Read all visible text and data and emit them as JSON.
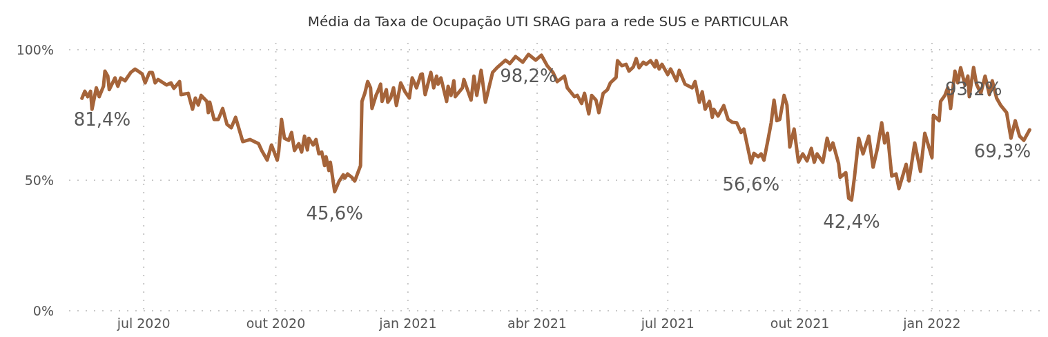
{
  "chart_data": {
    "type": "line",
    "title": "Média da Taxa de Ocupação UTI SRAG para a rede SUS e PARTICULAR",
    "x": [
      "2020-05-19",
      "2020-05-21",
      "2020-05-23",
      "2020-05-25",
      "2020-05-26",
      "2020-05-29",
      "2020-05-31",
      "2020-06-03",
      "2020-06-04",
      "2020-06-06",
      "2020-06-07",
      "2020-06-11",
      "2020-06-13",
      "2020-06-15",
      "2020-06-18",
      "2020-06-22",
      "2020-06-25",
      "2020-06-30",
      "2020-07-02",
      "2020-07-05",
      "2020-07-07",
      "2020-07-09",
      "2020-07-11",
      "2020-07-17",
      "2020-07-20",
      "2020-07-22",
      "2020-07-26",
      "2020-07-27",
      "2020-08-01",
      "2020-08-04",
      "2020-08-06",
      "2020-08-08",
      "2020-08-10",
      "2020-08-14",
      "2020-08-15",
      "2020-08-16",
      "2020-08-19",
      "2020-08-22",
      "2020-08-25",
      "2020-08-28",
      "2020-08-31",
      "2020-09-03",
      "2020-09-08",
      "2020-09-13",
      "2020-09-19",
      "2020-09-21",
      "2020-09-25",
      "2020-09-28",
      "2020-10-02",
      "2020-10-03",
      "2020-10-05",
      "2020-10-07",
      "2020-10-10",
      "2020-10-12",
      "2020-10-14",
      "2020-10-17",
      "2020-10-19",
      "2020-10-21",
      "2020-10-23",
      "2020-10-24",
      "2020-10-27",
      "2020-10-29",
      "2020-10-31",
      "2020-11-02",
      "2020-11-04",
      "2020-11-05",
      "2020-11-07",
      "2020-11-08",
      "2020-11-11",
      "2020-11-14",
      "2020-11-17",
      "2020-11-18",
      "2020-11-20",
      "2020-11-23",
      "2020-11-25",
      "2020-11-29",
      "2020-11-30",
      "2020-12-02",
      "2020-12-04",
      "2020-12-06",
      "2020-12-07",
      "2020-12-10",
      "2020-12-11",
      "2020-12-13",
      "2020-12-14",
      "2020-12-17",
      "2020-12-18",
      "2020-12-20",
      "2020-12-22",
      "2020-12-24",
      "2020-12-27",
      "2020-12-30",
      "2021-01-02",
      "2021-01-04",
      "2021-01-07",
      "2021-01-10",
      "2021-01-11",
      "2021-01-13",
      "2021-01-17",
      "2021-01-19",
      "2021-01-21",
      "2021-01-22",
      "2021-01-24",
      "2021-01-28",
      "2021-01-29",
      "2021-01-31",
      "2021-02-02",
      "2021-02-03",
      "2021-02-08",
      "2021-02-09",
      "2021-02-14",
      "2021-02-16",
      "2021-02-18",
      "2021-02-21",
      "2021-02-24",
      "2021-03-01",
      "2021-03-04",
      "2021-03-10",
      "2021-03-13",
      "2021-03-17",
      "2021-03-22",
      "2021-03-26",
      "2021-03-31",
      "2021-04-04",
      "2021-04-08",
      "2021-04-12",
      "2021-04-15",
      "2021-04-20",
      "2021-04-22",
      "2021-04-27",
      "2021-04-29",
      "2021-05-02",
      "2021-05-04",
      "2021-05-07",
      "2021-05-09",
      "2021-05-12",
      "2021-05-14",
      "2021-05-17",
      "2021-05-20",
      "2021-05-22",
      "2021-05-26",
      "2021-05-27",
      "2021-05-30",
      "2021-06-02",
      "2021-06-04",
      "2021-06-07",
      "2021-06-09",
      "2021-06-11",
      "2021-06-14",
      "2021-06-16",
      "2021-06-19",
      "2021-06-22",
      "2021-06-23",
      "2021-06-25",
      "2021-06-27",
      "2021-07-01",
      "2021-07-03",
      "2021-07-07",
      "2021-07-09",
      "2021-07-13",
      "2021-07-18",
      "2021-07-20",
      "2021-07-23",
      "2021-07-25",
      "2021-07-27",
      "2021-07-30",
      "2021-08-01",
      "2021-08-02",
      "2021-08-05",
      "2021-08-09",
      "2021-08-12",
      "2021-08-15",
      "2021-08-18",
      "2021-08-21",
      "2021-08-23",
      "2021-08-25",
      "2021-08-28",
      "2021-08-30",
      "2021-09-02",
      "2021-09-04",
      "2021-09-06",
      "2021-09-09",
      "2021-09-11",
      "2021-09-13",
      "2021-09-15",
      "2021-09-17",
      "2021-09-20",
      "2021-09-22",
      "2021-09-24",
      "2021-09-27",
      "2021-09-30",
      "2021-10-03",
      "2021-10-06",
      "2021-10-09",
      "2021-10-11",
      "2021-10-13",
      "2021-10-17",
      "2021-10-20",
      "2021-10-22",
      "2021-10-24",
      "2021-10-28",
      "2021-10-29",
      "2021-11-02",
      "2021-11-04",
      "2021-11-06",
      "2021-11-08",
      "2021-11-11",
      "2021-11-14",
      "2021-11-18",
      "2021-11-21",
      "2021-11-24",
      "2021-11-27",
      "2021-11-29",
      "2021-12-01",
      "2021-12-04",
      "2021-12-07",
      "2021-12-09",
      "2021-12-14",
      "2021-12-16",
      "2021-12-20",
      "2021-12-24",
      "2021-12-27",
      "2022-01-01",
      "2022-01-02",
      "2022-01-06",
      "2022-01-07",
      "2022-01-10",
      "2022-01-12",
      "2022-01-14",
      "2022-01-17",
      "2022-01-19",
      "2022-01-21",
      "2022-01-24",
      "2022-01-26",
      "2022-01-27",
      "2022-01-30",
      "2022-02-01",
      "2022-02-04",
      "2022-02-07",
      "2022-02-10",
      "2022-02-12",
      "2022-02-15",
      "2022-02-18",
      "2022-02-22",
      "2022-02-25",
      "2022-02-28",
      "2022-03-03",
      "2022-03-06",
      "2022-03-10"
    ],
    "series": [
      {
        "color": "#a5643a",
        "values": [
          81.4,
          84.1,
          82.0,
          84.1,
          77.2,
          85.4,
          82.0,
          86.0,
          91.8,
          89.9,
          84.7,
          89.2,
          86.0,
          89.2,
          88.1,
          91.3,
          92.6,
          90.7,
          87.3,
          91.3,
          91.3,
          87.3,
          88.6,
          86.5,
          87.3,
          85.2,
          87.8,
          82.8,
          83.3,
          77.2,
          81.5,
          78.8,
          82.5,
          80.2,
          75.9,
          79.9,
          73.3,
          73.3,
          77.5,
          71.4,
          70.1,
          74.1,
          64.8,
          65.6,
          64.0,
          61.6,
          57.7,
          63.5,
          57.7,
          60.8,
          73.3,
          66.1,
          65.3,
          68.3,
          61.4,
          64.0,
          60.8,
          66.9,
          61.6,
          66.1,
          63.5,
          65.6,
          60.1,
          60.8,
          55.6,
          59.0,
          53.7,
          56.9,
          45.6,
          49.5,
          52.1,
          50.8,
          52.4,
          51.1,
          49.7,
          55.6,
          80.2,
          83.3,
          87.8,
          85.4,
          77.5,
          82.8,
          83.9,
          86.8,
          80.2,
          84.7,
          79.9,
          81.5,
          85.4,
          78.6,
          87.3,
          83.9,
          81.5,
          89.2,
          85.4,
          90.5,
          90.7,
          82.8,
          91.3,
          85.4,
          89.9,
          86.8,
          89.2,
          80.2,
          86.0,
          82.5,
          88.1,
          82.0,
          85.4,
          88.6,
          80.7,
          89.9,
          82.5,
          92.1,
          79.9,
          91.3,
          93.1,
          96.0,
          94.7,
          97.4,
          95.2,
          98.2,
          96.0,
          97.9,
          93.9,
          91.3,
          87.8,
          89.9,
          85.4,
          82.0,
          82.5,
          79.4,
          83.3,
          75.4,
          82.5,
          80.7,
          75.9,
          83.3,
          84.7,
          87.3,
          89.4,
          95.8,
          93.9,
          94.4,
          91.8,
          93.4,
          96.6,
          93.1,
          95.2,
          94.4,
          95.8,
          93.4,
          95.8,
          92.6,
          94.4,
          90.5,
          92.6,
          88.1,
          92.1,
          86.8,
          85.4,
          87.8,
          79.9,
          83.9,
          77.2,
          80.2,
          74.1,
          77.2,
          74.6,
          78.6,
          73.3,
          72.2,
          72.0,
          68.3,
          69.6,
          64.3,
          56.6,
          60.3,
          59.0,
          60.1,
          57.7,
          66.1,
          72.0,
          80.7,
          72.8,
          73.3,
          82.5,
          78.8,
          62.7,
          69.6,
          57.0,
          60.1,
          57.4,
          62.2,
          56.9,
          60.1,
          56.9,
          66.1,
          61.6,
          64.3,
          56.3,
          51.1,
          52.9,
          43.1,
          42.4,
          51.1,
          66.1,
          60.1,
          66.9,
          55.0,
          62.2,
          72.0,
          64.3,
          68.0,
          51.6,
          52.4,
          46.8,
          56.1,
          49.7,
          64.3,
          53.4,
          68.0,
          58.7,
          74.9,
          72.8,
          80.2,
          82.5,
          85.4,
          77.5,
          91.8,
          87.3,
          93.1,
          86.5,
          89.9,
          82.0,
          93.2,
          86.8,
          83.3,
          89.9,
          82.8,
          88.1,
          81.5,
          78.6,
          75.9,
          66.1,
          72.8,
          66.9,
          65.3,
          69.3
        ]
      }
    ],
    "xlim": [
      "2020-05-10",
      "2022-03-18"
    ],
    "xticks": [
      {
        "value": "2020-07-01",
        "label": "jul 2020"
      },
      {
        "value": "2020-10-01",
        "label": "out 2020"
      },
      {
        "value": "2021-01-01",
        "label": "jan 2021"
      },
      {
        "value": "2021-04-01",
        "label": "abr 2021"
      },
      {
        "value": "2021-07-01",
        "label": "jul 2021"
      },
      {
        "value": "2021-10-01",
        "label": "out 2021"
      },
      {
        "value": "2022-01-01",
        "label": "jan 2022"
      }
    ],
    "ylim": [
      0,
      100
    ],
    "yticks": [
      {
        "value": 0,
        "label": "0%"
      },
      {
        "value": 50,
        "label": "50%"
      },
      {
        "value": 100,
        "label": "100%"
      }
    ],
    "grid": true,
    "line_style": "solid",
    "annotations": [
      {
        "text": "81,4%",
        "x": "2020-05-19",
        "y": 81.4
      },
      {
        "text": "45,6%",
        "x": "2020-11-11",
        "y": 45.6
      },
      {
        "text": "98,2%",
        "x": "2021-03-26",
        "y": 98.2
      },
      {
        "text": "56,6%",
        "x": "2021-08-28",
        "y": 56.6
      },
      {
        "text": "42,4%",
        "x": "2021-11-06",
        "y": 42.4
      },
      {
        "text": "93,2%",
        "x": "2022-01-30",
        "y": 93.2
      },
      {
        "text": "69,3%",
        "x": "2022-03-10",
        "y": 69.3
      }
    ]
  }
}
